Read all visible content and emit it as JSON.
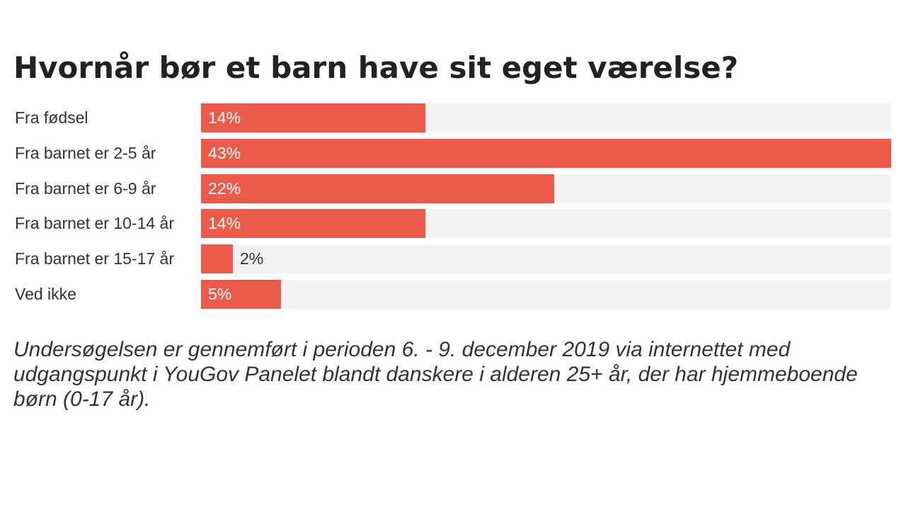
{
  "chart_data": {
    "type": "bar",
    "orientation": "horizontal",
    "title": "Hvornår bør et barn have sit eget værelse?",
    "categories": [
      "Fra fødsel",
      "Fra barnet er 2-5 år",
      "Fra barnet er 6-9 år",
      "Fra barnet er 10-14 år",
      "Fra barnet er 15-17 år",
      "Ved ikke"
    ],
    "values": [
      14,
      43,
      22,
      14,
      2,
      5
    ],
    "value_labels": [
      "14%",
      "43%",
      "22%",
      "14%",
      "2%",
      "5%"
    ],
    "unit": "%",
    "xlim": [
      0,
      43
    ],
    "grid": false,
    "bar_color": "#ec5b4a",
    "track_color": "#f2f2f2"
  },
  "footnote": "Undersøgelsen er gennemført i perioden 6. - 9. december 2019 via internettet med udgangspunkt i YouGov Panelet blandt danskere i alderen 25+ år, der har hjemmeboende børn (0-17 år)."
}
